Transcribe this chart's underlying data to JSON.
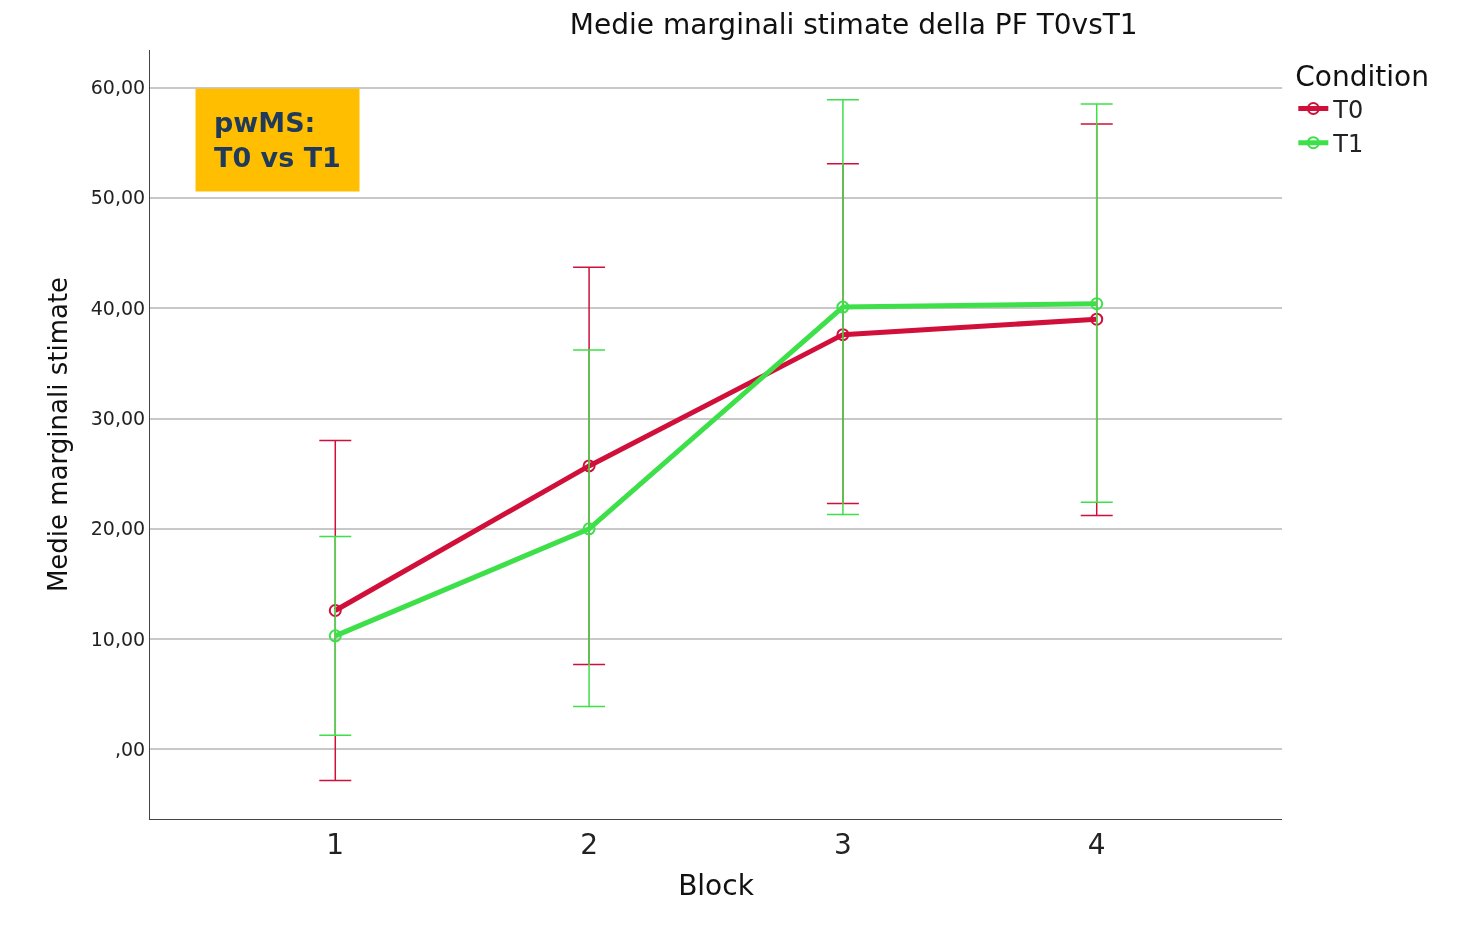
{
  "chart_data": {
    "type": "line",
    "title": "Medie marginali stimate della PF T0vsT1",
    "xlabel": "Block",
    "ylabel": "Medie marginali stimate",
    "legend_title": "Condition",
    "categories": [
      "1",
      "2",
      "3",
      "4"
    ],
    "series": [
      {
        "name": "T0",
        "color": "#d0103a",
        "values": [
          12.6,
          25.7,
          37.6,
          39.0
        ],
        "errors": [
          [
            -2.8,
            28.0
          ],
          [
            7.7,
            43.7
          ],
          [
            22.3,
            53.1
          ],
          [
            21.2,
            56.7
          ]
        ]
      },
      {
        "name": "T1",
        "color": "#3ee04a",
        "values": [
          10.3,
          20.0,
          40.1,
          40.4
        ],
        "errors": [
          [
            1.3,
            19.3
          ],
          [
            3.9,
            36.2
          ],
          [
            21.3,
            58.9
          ],
          [
            22.4,
            58.5
          ]
        ]
      }
    ],
    "ylim": [
      -6.3,
      63.4
    ],
    "yticks": [
      {
        "value": 0,
        "label": ",00"
      },
      {
        "value": 10,
        "label": "10,00"
      },
      {
        "value": 20,
        "label": "20,00"
      },
      {
        "value": 30,
        "label": "30,00"
      },
      {
        "value": 40,
        "label": "40,00"
      },
      {
        "value": 50,
        "label": "50,00"
      },
      {
        "value": 60,
        "label": "60,00"
      }
    ],
    "grid": "y",
    "legend": "top right",
    "marker": "circle",
    "line_style": "solid",
    "annotations": [
      "pwMS:\nT0 vs T1"
    ]
  }
}
